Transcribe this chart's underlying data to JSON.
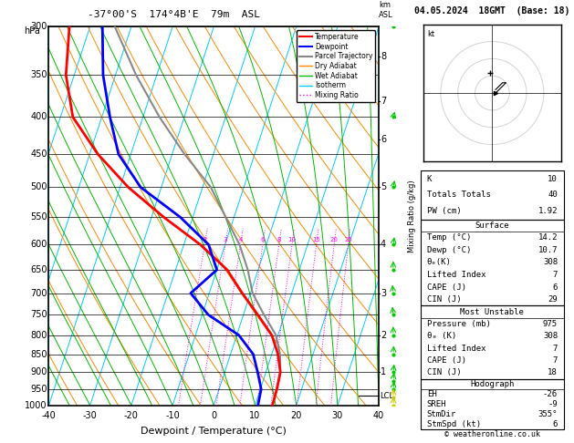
{
  "title_skewt": "-37°00'S  174°4B'E  79m  ASL",
  "title_right": "04.05.2024  18GMT  (Base: 18)",
  "xlabel": "Dewpoint / Temperature (°C)",
  "T_min": -40,
  "T_max": 40,
  "P_min": 300,
  "P_max": 1000,
  "skew_factor": 30,
  "pressure_levels": [
    300,
    350,
    400,
    450,
    500,
    550,
    600,
    650,
    700,
    750,
    800,
    850,
    900,
    950,
    1000
  ],
  "temp_profile_T": [
    -65,
    -62,
    -57,
    -48,
    -38,
    -27,
    -16,
    -7.5,
    -2.0,
    3.5,
    8.5,
    11.5,
    13.5,
    14.0,
    14.2
  ],
  "temp_profile_P": [
    300,
    350,
    400,
    450,
    500,
    550,
    600,
    650,
    700,
    750,
    800,
    850,
    900,
    950,
    1000
  ],
  "dewp_profile_T": [
    -57,
    -53,
    -48,
    -43,
    -35,
    -23,
    -14,
    -10,
    -14.5,
    -8.5,
    0.5,
    5.5,
    8.0,
    10.2,
    10.7
  ],
  "dewp_profile_P": [
    300,
    350,
    400,
    450,
    500,
    550,
    600,
    650,
    700,
    750,
    800,
    850,
    900,
    950,
    1000
  ],
  "parcel_T": [
    -54,
    -45,
    -36,
    -27,
    -18,
    -12,
    -6.5,
    -2.5,
    0.5,
    5.0,
    9.5,
    12.0,
    13.5,
    14.0,
    14.2
  ],
  "parcel_P": [
    300,
    350,
    400,
    450,
    500,
    550,
    600,
    650,
    700,
    750,
    800,
    850,
    900,
    950,
    1000
  ],
  "lcl_pressure": 970,
  "km_ticks": [
    1,
    2,
    3,
    4,
    5,
    6,
    7,
    8
  ],
  "km_pressures": [
    900,
    800,
    700,
    600,
    500,
    430,
    380,
    330
  ],
  "mr_values": [
    2,
    3,
    4,
    6,
    8,
    10,
    15,
    20,
    25
  ],
  "mr_label_p": 600,
  "surface_temp": 14.2,
  "surface_dewp": 10.7,
  "surface_thetae": 308,
  "surface_li": 7,
  "surface_cape": 6,
  "surface_cin": 29,
  "mu_pressure": 975,
  "mu_thetae": 308,
  "mu_li": 7,
  "mu_cape": 7,
  "mu_cin": 18,
  "K_index": 10,
  "TT": 40,
  "PW": 1.92,
  "EH": -26,
  "SREH": -9,
  "StmDir": 355,
  "StmSpd": 6,
  "bg_color": "#ffffff",
  "temp_color": "#ff0000",
  "dewp_color": "#0000ff",
  "parcel_color": "#888888",
  "dry_adiabat_color": "#ff8800",
  "wet_adiabat_color": "#00bb00",
  "isotherm_color": "#00ccff",
  "mixing_ratio_color": "#ff00ff",
  "wind_data": [
    {
      "p": 1000,
      "u": 1,
      "v": 5,
      "col": "#cccc00"
    },
    {
      "p": 975,
      "u": 1,
      "v": 5,
      "col": "#cccc00"
    },
    {
      "p": 950,
      "u": 2,
      "v": 5,
      "col": "#00cc00"
    },
    {
      "p": 925,
      "u": 2,
      "v": 6,
      "col": "#00cc00"
    },
    {
      "p": 900,
      "u": 2,
      "v": 5,
      "col": "#00cc00"
    },
    {
      "p": 850,
      "u": 1,
      "v": 4,
      "col": "#00cc00"
    },
    {
      "p": 800,
      "u": 0,
      "v": 4,
      "col": "#00cc00"
    },
    {
      "p": 750,
      "u": -1,
      "v": 3,
      "col": "#00cc00"
    },
    {
      "p": 700,
      "u": -1,
      "v": 3,
      "col": "#00cc00"
    },
    {
      "p": 650,
      "u": 0,
      "v": 2,
      "col": "#00cc00"
    },
    {
      "p": 600,
      "u": 1,
      "v": 2,
      "col": "#00cc00"
    },
    {
      "p": 500,
      "u": 2,
      "v": 3,
      "col": "#00cc00"
    },
    {
      "p": 400,
      "u": 4,
      "v": 4,
      "col": "#00cc00"
    },
    {
      "p": 300,
      "u": 5,
      "v": 5,
      "col": "#00cc00"
    }
  ],
  "hodo_u": [
    1,
    2,
    3,
    4,
    3,
    2,
    1
  ],
  "hodo_v": [
    1,
    2,
    3,
    3,
    2,
    1,
    0
  ]
}
